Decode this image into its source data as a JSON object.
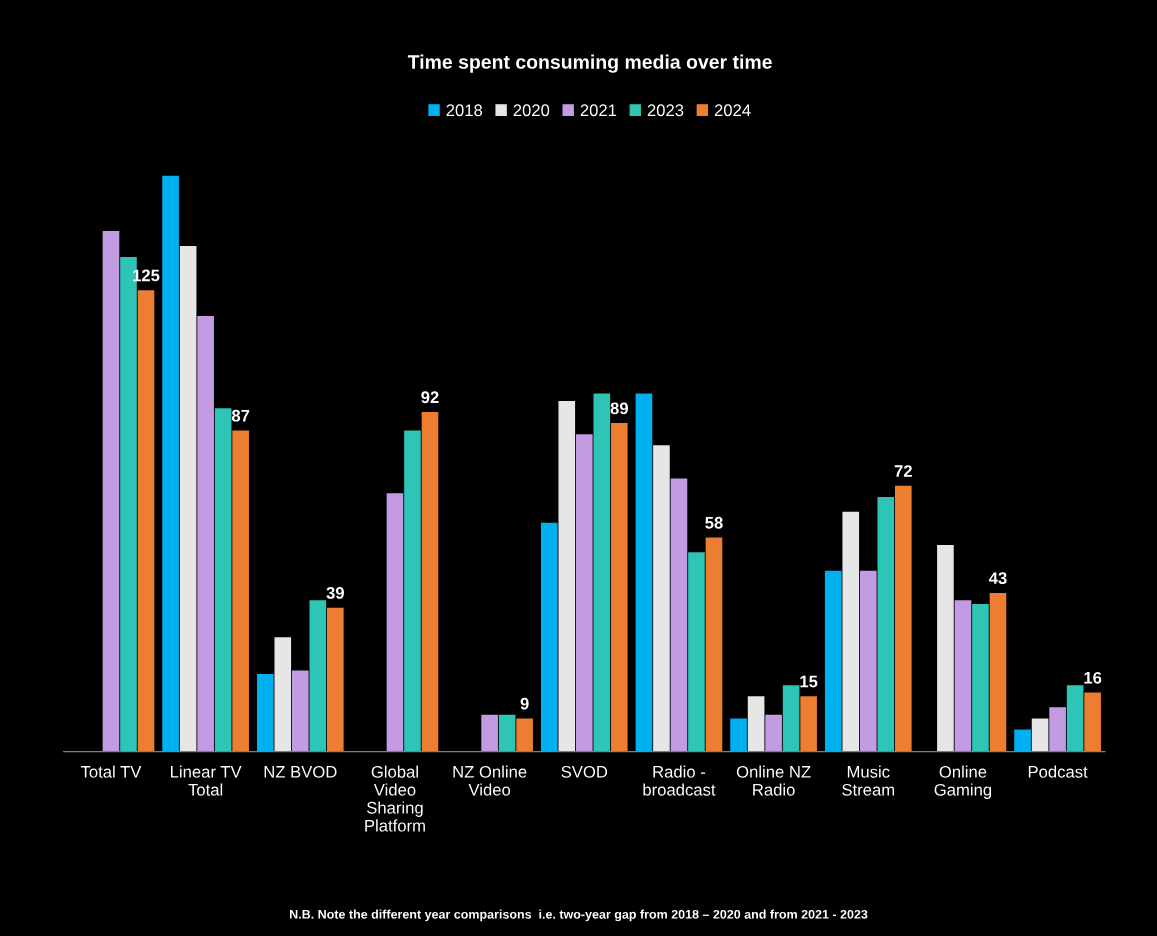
{
  "chart_data": {
    "type": "bar",
    "title": "Time spent consuming media over time",
    "categories": [
      "Total TV",
      "Linear TV\nTotal",
      "NZ BVOD",
      "Global\nVideo\nSharing\nPlatform",
      "NZ Online\nVideo",
      "SVOD",
      "Radio -\nbroadcast",
      "Online NZ\nRadio",
      "Music\nStream",
      "Online\nGaming",
      "Podcast"
    ],
    "series": [
      {
        "name": "2018",
        "color": "#00b0f0",
        "values": [
          null,
          156,
          21,
          null,
          null,
          62,
          97,
          9,
          49,
          null,
          6
        ]
      },
      {
        "name": "2020",
        "color": "#e7e6e6",
        "values": [
          null,
          137,
          31,
          null,
          null,
          95,
          83,
          15,
          65,
          56,
          9
        ]
      },
      {
        "name": "2021",
        "color": "#c39be3",
        "values": [
          141,
          118,
          22,
          70,
          10,
          86,
          74,
          10,
          49,
          41,
          12
        ]
      },
      {
        "name": "2023",
        "color": "#2ec4b6",
        "values": [
          134,
          93,
          41,
          87,
          10,
          97,
          54,
          18,
          69,
          40,
          18
        ]
      },
      {
        "name": "2024",
        "color": "#ed7d31",
        "values": [
          125,
          87,
          39,
          92,
          9,
          89,
          58,
          15,
          72,
          43,
          16
        ],
        "value_labels": [
          "125",
          "87",
          "39",
          "92",
          "9",
          "89",
          "58",
          "15",
          "72",
          "43",
          "16"
        ]
      }
    ],
    "legend": "top",
    "grid": false,
    "annotations": [
      "N.B. Note the different year comparisons  i.e. two-year gap from 2018 – 2020 and from 2021 - 2023"
    ]
  }
}
